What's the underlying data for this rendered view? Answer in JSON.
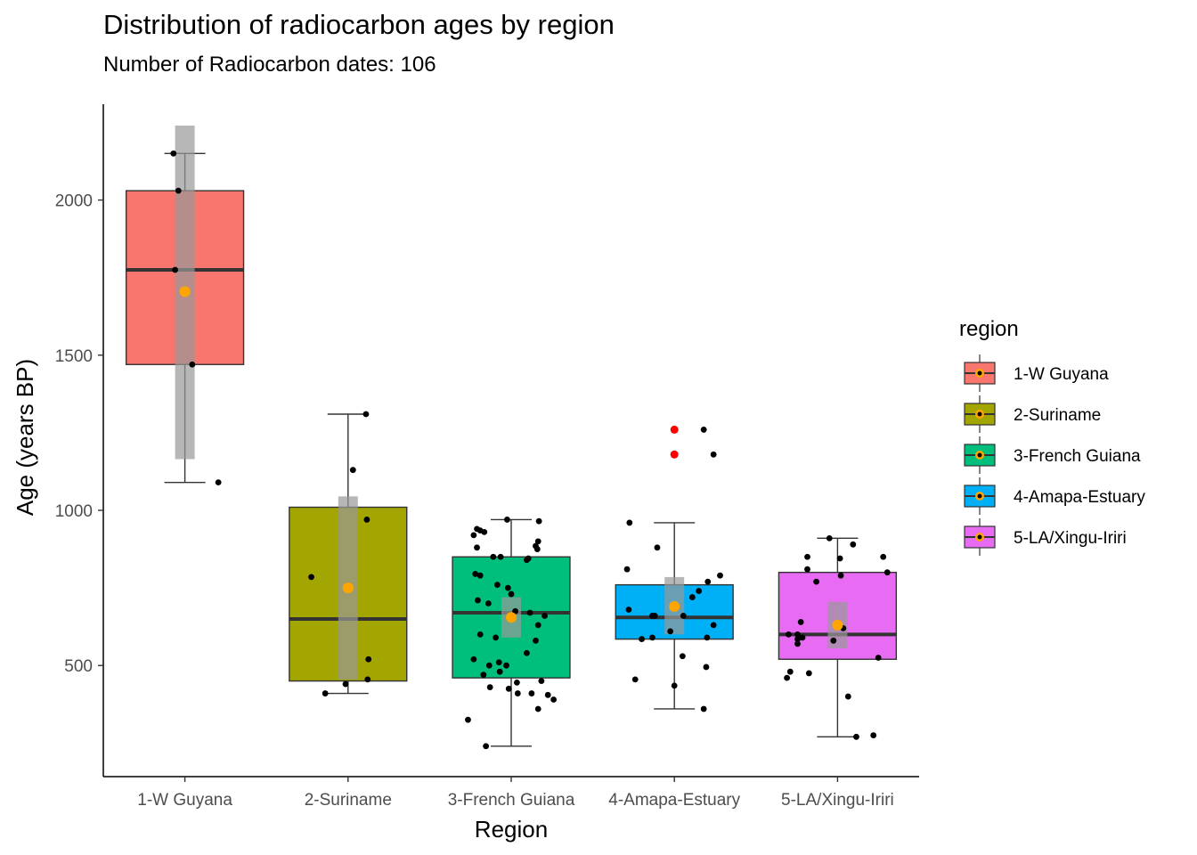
{
  "chart_data": {
    "type": "boxplot",
    "title": "Distribution of radiocarbon ages by region",
    "subtitle": "Number of Radiocarbon dates: 106",
    "xlabel": "Region",
    "ylabel": "Age (years BP)",
    "ylim": [
      200,
      2350
    ],
    "yticks": [
      500,
      1000,
      1500,
      2000
    ],
    "grid": false,
    "legend": {
      "title": "region",
      "placement": "right"
    },
    "mean_color": "#FFA500",
    "outlier_color": "#FF0000",
    "point_color": "#000000",
    "ci_band_color": "#999999",
    "categories": [
      "1-W Guyana",
      "2-Suriname",
      "3-French Guiana",
      "4-Amapa-Estuary",
      "5-LA/Xingu-Iriri"
    ],
    "series": [
      {
        "name": "1-W Guyana",
        "color": "#F8766D",
        "q1": 1470,
        "median": 1775,
        "q3": 2030,
        "whisker_low": 1090,
        "whisker_high": 2150,
        "mean": 1705,
        "ci": [
          1165,
          2240
        ],
        "outliers": [],
        "points": [
          [
            -0.14,
            2150
          ],
          [
            -0.08,
            2030
          ],
          [
            -0.12,
            1775
          ],
          [
            0.09,
            1470
          ],
          [
            0.41,
            1090
          ]
        ]
      },
      {
        "name": "2-Suriname",
        "color": "#A3A500",
        "q1": 450,
        "median": 650,
        "q3": 1010,
        "whisker_low": 410,
        "whisker_high": 1310,
        "mean": 750,
        "ci": [
          455,
          1045
        ],
        "outliers": [],
        "points": [
          [
            0.22,
            1310
          ],
          [
            0.06,
            1130
          ],
          [
            0.23,
            970
          ],
          [
            -0.45,
            785
          ],
          [
            0.25,
            520
          ],
          [
            0.24,
            455
          ],
          [
            -0.03,
            440
          ],
          [
            -0.28,
            410
          ]
        ]
      },
      {
        "name": "3-French Guiana",
        "color": "#00BF7D",
        "q1": 460,
        "median": 670,
        "q3": 850,
        "whisker_low": 240,
        "whisker_high": 970,
        "mean": 655,
        "ci": [
          590,
          720
        ],
        "outliers": [],
        "points": [
          [
            -0.05,
            970
          ],
          [
            0.34,
            965
          ],
          [
            -0.42,
            940
          ],
          [
            -0.38,
            935
          ],
          [
            -0.46,
            920
          ],
          [
            -0.33,
            930
          ],
          [
            0.33,
            900
          ],
          [
            0.3,
            885
          ],
          [
            -0.42,
            880
          ],
          [
            0.32,
            875
          ],
          [
            -0.22,
            850
          ],
          [
            -0.13,
            850
          ],
          [
            0.19,
            840
          ],
          [
            0.21,
            845
          ],
          [
            -0.44,
            795
          ],
          [
            -0.38,
            790
          ],
          [
            -0.17,
            760
          ],
          [
            -0.04,
            750
          ],
          [
            0.0,
            730
          ],
          [
            -0.41,
            710
          ],
          [
            -0.28,
            700
          ],
          [
            0.05,
            675
          ],
          [
            0.23,
            670
          ],
          [
            0.41,
            660
          ],
          [
            0.33,
            630
          ],
          [
            -0.38,
            600
          ],
          [
            -0.19,
            590
          ],
          [
            0.3,
            580
          ],
          [
            0.19,
            540
          ],
          [
            -0.46,
            520
          ],
          [
            -0.27,
            500
          ],
          [
            -0.34,
            470
          ],
          [
            -0.06,
            500
          ],
          [
            0.37,
            450
          ],
          [
            0.07,
            445
          ],
          [
            -0.15,
            510
          ],
          [
            -0.14,
            480
          ],
          [
            -0.26,
            430
          ],
          [
            -0.03,
            425
          ],
          [
            0.08,
            410
          ],
          [
            0.25,
            410
          ],
          [
            0.45,
            405
          ],
          [
            0.52,
            390
          ],
          [
            0.33,
            360
          ],
          [
            -0.53,
            325
          ],
          [
            -0.31,
            240
          ]
        ]
      },
      {
        "name": "4-Amapa-Estuary",
        "color": "#00B0F6",
        "q1": 585,
        "median": 655,
        "q3": 760,
        "whisker_low": 360,
        "whisker_high": 960,
        "mean": 690,
        "ci": [
          600,
          785
        ],
        "outliers": [
          1260,
          1180
        ],
        "points": [
          [
            0.36,
            1260
          ],
          [
            0.48,
            1180
          ],
          [
            -0.55,
            960
          ],
          [
            -0.21,
            880
          ],
          [
            -0.58,
            810
          ],
          [
            0.56,
            790
          ],
          [
            0.41,
            770
          ],
          [
            0.22,
            720
          ],
          [
            0.3,
            740
          ],
          [
            -0.56,
            680
          ],
          [
            0.11,
            660
          ],
          [
            -0.27,
            660
          ],
          [
            -0.24,
            660
          ],
          [
            0.48,
            630
          ],
          [
            -0.27,
            590
          ],
          [
            -0.4,
            585
          ],
          [
            -0.05,
            610
          ],
          [
            0.4,
            590
          ],
          [
            0.1,
            530
          ],
          [
            0.39,
            495
          ],
          [
            -0.48,
            455
          ],
          [
            0.0,
            435
          ],
          [
            0.36,
            360
          ]
        ]
      },
      {
        "name": "5-LA/Xingu-Iriri",
        "color": "#E76BF3",
        "q1": 520,
        "median": 600,
        "q3": 800,
        "whisker_low": 270,
        "whisker_high": 910,
        "mean": 630,
        "ci": [
          555,
          705
        ],
        "outliers": [],
        "points": [
          [
            -0.1,
            910
          ],
          [
            0.19,
            890
          ],
          [
            -0.37,
            850
          ],
          [
            0.56,
            850
          ],
          [
            0.03,
            845
          ],
          [
            -0.37,
            810
          ],
          [
            0.04,
            790
          ],
          [
            0.61,
            800
          ],
          [
            -0.26,
            770
          ],
          [
            -0.45,
            640
          ],
          [
            -0.49,
            600
          ],
          [
            -0.6,
            600
          ],
          [
            -0.49,
            585
          ],
          [
            -0.05,
            580
          ],
          [
            0.07,
            620
          ],
          [
            -0.49,
            570
          ],
          [
            -0.43,
            590
          ],
          [
            0.5,
            525
          ],
          [
            -0.58,
            480
          ],
          [
            -0.35,
            475
          ],
          [
            -0.62,
            460
          ],
          [
            0.13,
            400
          ],
          [
            0.23,
            270
          ],
          [
            0.44,
            275
          ]
        ]
      }
    ]
  }
}
